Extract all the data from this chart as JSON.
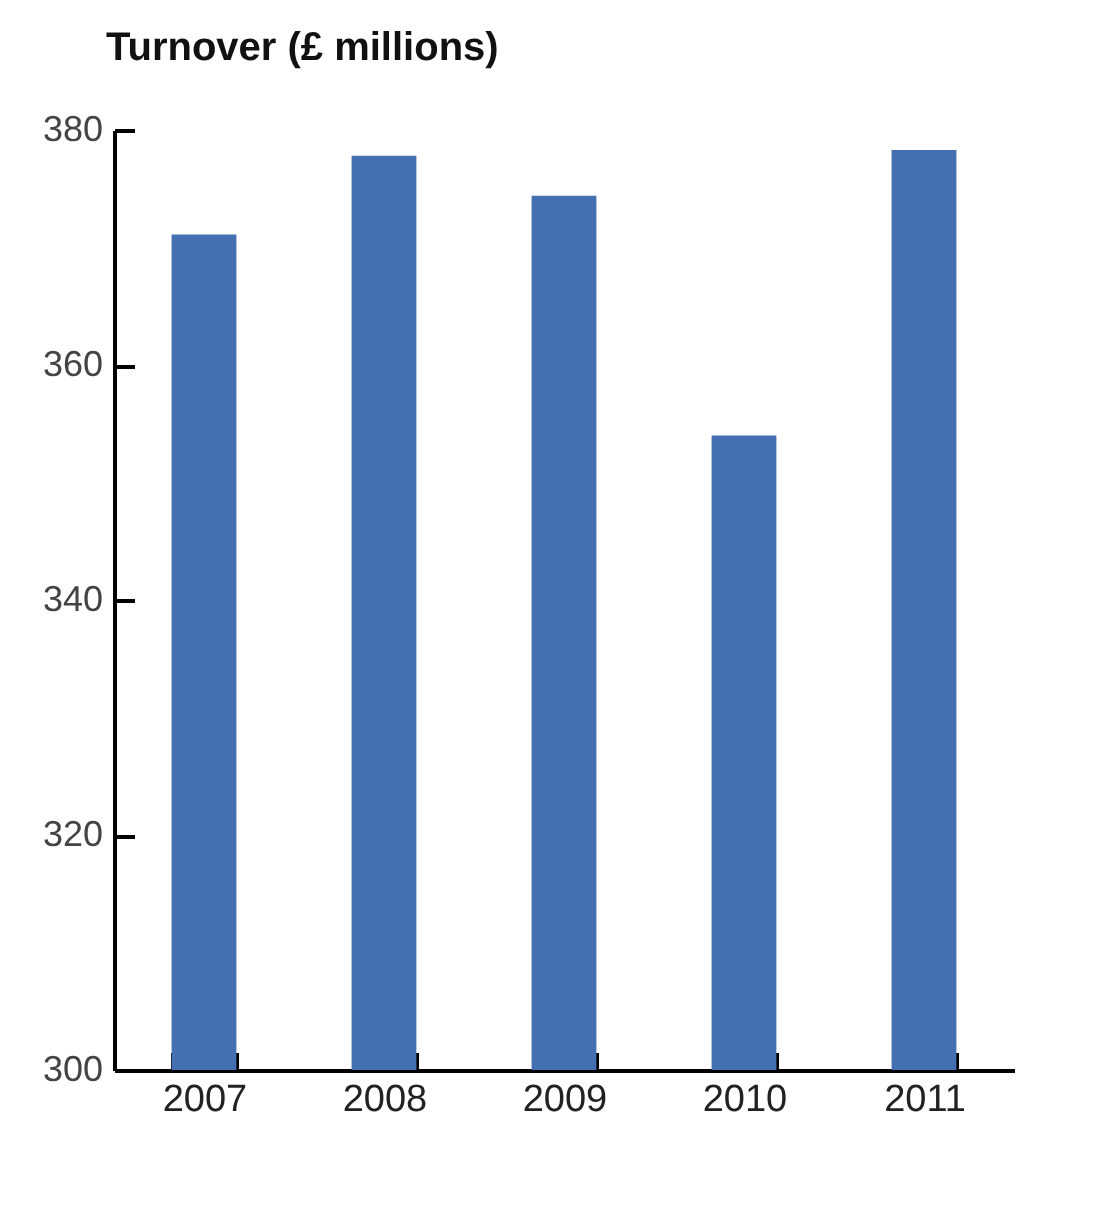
{
  "chart_data": {
    "type": "bar",
    "title": "Turnover (£ millions)",
    "categories": [
      "2007",
      "2008",
      "2009",
      "2010",
      "2011"
    ],
    "values": [
      371.1,
      377.8,
      374.4,
      354.0,
      378.3
    ],
    "color": "#4470b2",
    "ylim": [
      300,
      380
    ],
    "yticks": [
      300,
      320,
      340,
      360,
      380
    ],
    "grid": false
  }
}
